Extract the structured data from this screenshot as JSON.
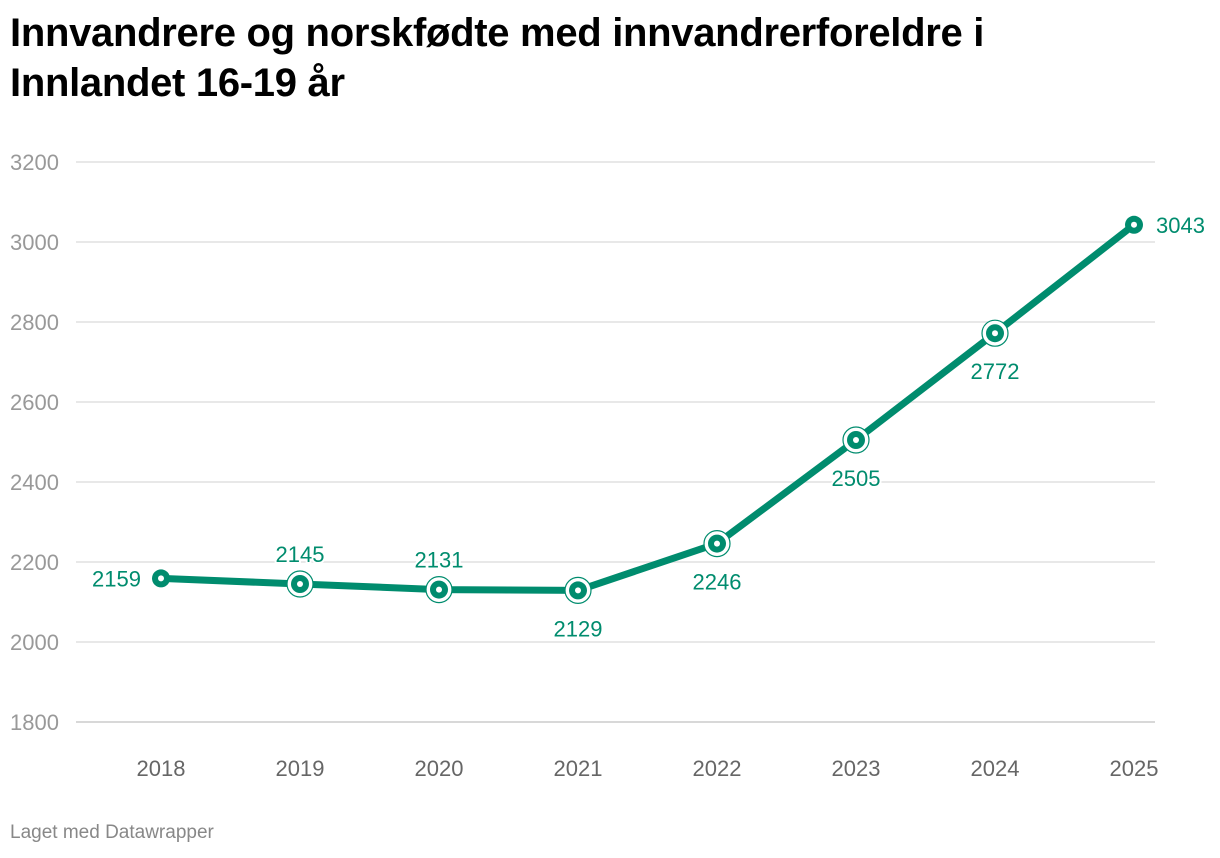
{
  "title": "Innvandrere og norskfødte med innvandrerforeldre i Innlandet 16-19 år",
  "footer": "Laget med Datawrapper",
  "colors": {
    "line": "#008c6e",
    "grid": "#e0e0e0",
    "axis_text": "#999999"
  },
  "chart_data": {
    "type": "line",
    "title": "Innvandrere og norskfødte med innvandrerforeldre i Innlandet 16-19 år",
    "xlabel": "",
    "ylabel": "",
    "categories": [
      "2018",
      "2019",
      "2020",
      "2021",
      "2022",
      "2023",
      "2024",
      "2025"
    ],
    "series": [
      {
        "name": "Innvandrere og norskfødte med innvandrerforeldre 16-19 år",
        "values": [
          2159,
          2145,
          2131,
          2129,
          2246,
          2505,
          2772,
          3043
        ]
      }
    ],
    "ylim": [
      1800,
      3200
    ],
    "yticks": [
      1800,
      2000,
      2200,
      2400,
      2600,
      2800,
      3000,
      3200
    ],
    "grid": true,
    "label_positions": [
      "left",
      "above",
      "above",
      "below",
      "below",
      "below",
      "below",
      "right"
    ]
  }
}
